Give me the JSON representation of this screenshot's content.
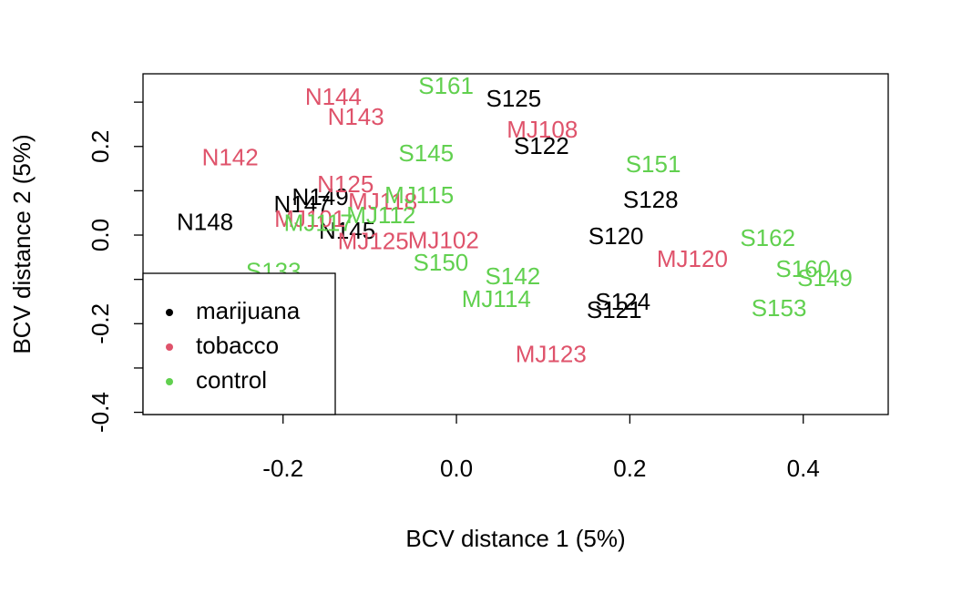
{
  "chart_data": {
    "type": "scatter",
    "xlabel": "BCV distance 1 (5%)",
    "ylabel": "BCV distance 2 (5%)",
    "xlim": [
      -0.3615,
      0.498
    ],
    "ylim": [
      -0.405,
      0.364
    ],
    "xticks": [
      -0.2,
      {
        "value": 0,
        "label": "0.0"
      },
      0.2,
      0.4
    ],
    "yticks": [
      -0.4,
      -0.2,
      {
        "value": 0,
        "label": "0.0"
      },
      0.2
    ],
    "yminorticks": [
      -0.3,
      -0.1,
      0.1,
      0.3
    ],
    "legend": "bottom-left",
    "series": [
      {
        "name": "marijuana",
        "color": "#000000",
        "labels": [
          "S125",
          "S122",
          "S128",
          "S120",
          "S124",
          "S121",
          "N148",
          "N149",
          "N147",
          "N145"
        ],
        "x": [
          0.066,
          0.098,
          0.224,
          0.184,
          0.192,
          0.182,
          -0.29,
          -0.157,
          -0.178,
          -0.126
        ],
        "y": [
          0.304,
          0.197,
          0.076,
          -0.006,
          -0.154,
          -0.173,
          0.025,
          0.082,
          0.066,
          0.006
        ]
      },
      {
        "name": "tobacco",
        "color": "#df536b",
        "labels": [
          "N144",
          "N143",
          "N142",
          "N125",
          "MJ108",
          "MJ120",
          "MJ123",
          "MJ102",
          "MJ125",
          "MJ101",
          "MJ118"
        ],
        "x": [
          -0.142,
          -0.116,
          -0.261,
          -0.128,
          0.099,
          0.272,
          0.109,
          -0.015,
          -0.096,
          -0.169,
          -0.085
        ],
        "y": [
          0.308,
          0.263,
          0.171,
          0.111,
          0.234,
          -0.058,
          -0.273,
          -0.016,
          -0.018,
          0.033,
          0.072
        ]
      },
      {
        "name": "control",
        "color": "#61d04f",
        "labels": [
          "S161",
          "S145",
          "S151",
          "MJ115",
          "MJ112",
          "MJ117",
          "S150",
          "S142",
          "MJ114",
          "S162",
          "S160",
          "S149",
          "S153",
          "S133"
        ],
        "x": [
          -0.012,
          -0.035,
          0.227,
          -0.043,
          -0.087,
          -0.159,
          -0.018,
          0.065,
          0.046,
          0.359,
          0.4,
          0.425,
          0.372,
          -0.211
        ],
        "y": [
          0.333,
          0.181,
          0.156,
          0.086,
          0.041,
          0.023,
          -0.066,
          -0.097,
          -0.148,
          -0.01,
          -0.08,
          -0.101,
          -0.169,
          -0.086
        ]
      }
    ]
  }
}
